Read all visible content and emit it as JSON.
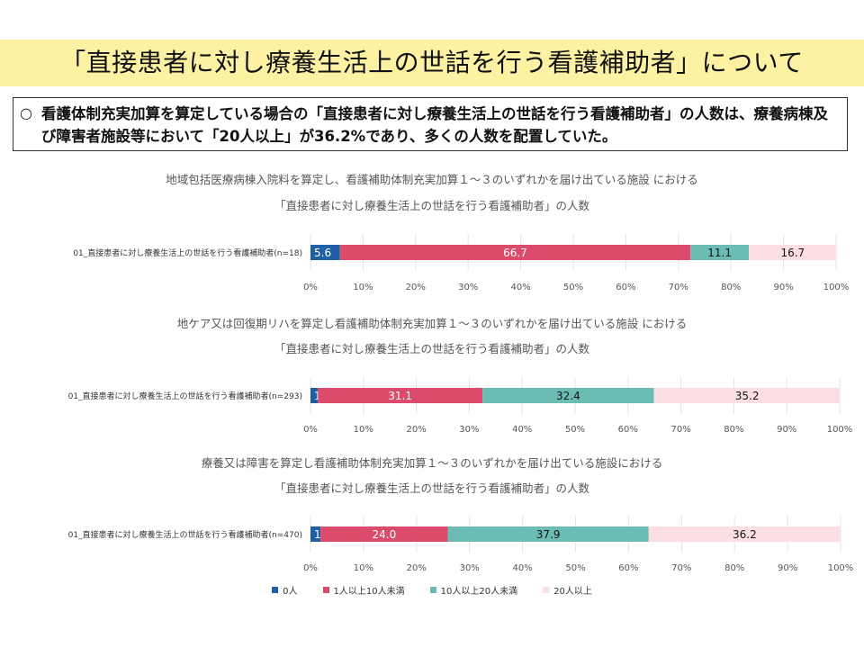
{
  "slide": {
    "title": "「直接患者に対し療養生活上の世話を行う看護補助者」について",
    "bullet": "○",
    "summary": "看護体制充実加算を算定している場合の「直接患者に対し療養生活上の世話を行う看護補助者」の人数は、療養病棟及び障害者施設等において「20人以上」が36.2%であり、多くの人数を配置していた。"
  },
  "legend": [
    {
      "label": "0人",
      "color": "#1f5fa8"
    },
    {
      "label": "1人以上10人未満",
      "color": "#dc4a6c"
    },
    {
      "label": "10人以上20人未満",
      "color": "#6cbcb6"
    },
    {
      "label": "20人以上",
      "color": "#fcdfe5"
    }
  ],
  "chart_data": [
    {
      "type": "bar",
      "orientation": "horizontal",
      "stacked": "percent",
      "title": "地域包括医療病棟入院料を算定し、看護補助体制充実加算１～３のいずれかを届け出ている施設 における",
      "subtitle": "「直接患者に対し療養生活上の世話を行う看護補助者」の人数",
      "categories": [
        "01_直接患者に対し療養生活上の世話を行う看護補助者(n=18)"
      ],
      "series": [
        {
          "name": "0人",
          "values": [
            5.6
          ]
        },
        {
          "name": "1人以上10人未満",
          "values": [
            66.7
          ]
        },
        {
          "name": "10人以上20人未満",
          "values": [
            11.1
          ]
        },
        {
          "name": "20人以上",
          "values": [
            16.7
          ]
        }
      ],
      "xlim": [
        0,
        100
      ],
      "xticks": [
        "0%",
        "10%",
        "20%",
        "30%",
        "40%",
        "50%",
        "60%",
        "70%",
        "80%",
        "90%",
        "100%"
      ],
      "grid": true
    },
    {
      "type": "bar",
      "orientation": "horizontal",
      "stacked": "percent",
      "title": "地ケア又は回復期リハを算定し看護補助体制充実加算１～３のいずれかを届け出ている施設 における",
      "subtitle": "「直接患者に対し療養生活上の世話を行う看護補助者」の人数",
      "categories": [
        "01_直接患者に対し療養生活上の世話を行う看護補助者(n=293)"
      ],
      "series": [
        {
          "name": "0人",
          "values": [
            1.4
          ]
        },
        {
          "name": "1人以上10人未満",
          "values": [
            31.1
          ]
        },
        {
          "name": "10人以上20人未満",
          "values": [
            32.4
          ]
        },
        {
          "name": "20人以上",
          "values": [
            35.2
          ]
        }
      ],
      "xlim": [
        0,
        100
      ],
      "xticks": [
        "0%",
        "10%",
        "20%",
        "30%",
        "40%",
        "50%",
        "60%",
        "70%",
        "80%",
        "90%",
        "100%"
      ],
      "grid": true
    },
    {
      "type": "bar",
      "orientation": "horizontal",
      "stacked": "percent",
      "title": "療養又は障害を算定し看護補助体制充実加算１～３のいずれかを届け出ている施設における",
      "subtitle": "「直接患者に対し療養生活上の世話を行う看護補助者」の人数",
      "categories": [
        "01_直接患者に対し療養生活上の世話を行う看護補助者(n=470)"
      ],
      "series": [
        {
          "name": "0人",
          "values": [
            1.9
          ]
        },
        {
          "name": "1人以上10人未満",
          "values": [
            24.0
          ]
        },
        {
          "name": "10人以上20人未満",
          "values": [
            37.9
          ]
        },
        {
          "name": "20人以上",
          "values": [
            36.2
          ]
        }
      ],
      "xlim": [
        0,
        100
      ],
      "xticks": [
        "0%",
        "10%",
        "20%",
        "30%",
        "40%",
        "50%",
        "60%",
        "70%",
        "80%",
        "90%",
        "100%"
      ],
      "grid": true
    }
  ]
}
